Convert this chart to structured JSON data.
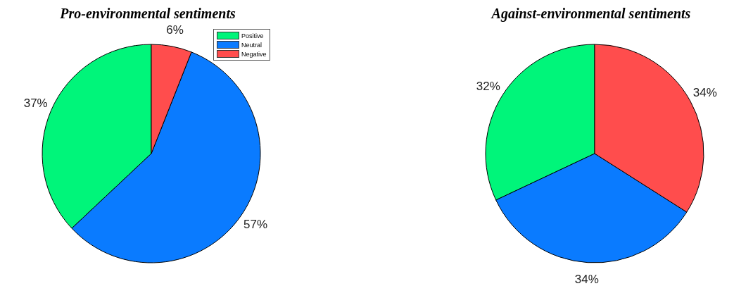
{
  "chart_data": [
    {
      "type": "pie",
      "title": "Pro-environmental sentiments",
      "categories": [
        "Positive",
        "Neutral",
        "Negative"
      ],
      "values": [
        37,
        57,
        6
      ],
      "value_labels": [
        "37%",
        "57%",
        "6%"
      ],
      "colors": [
        "#00f57a",
        "#0a7bff",
        "#ff4d4d"
      ],
      "legend": "top right"
    },
    {
      "type": "pie",
      "title": "Against-environmental sentiments",
      "categories": [
        null,
        null,
        null
      ],
      "values": [
        32,
        34,
        34
      ],
      "value_labels": [
        "32%",
        "34%",
        "34%"
      ],
      "colors": [
        "#00f57a",
        "#0a7bff",
        "#ff4d4d"
      ]
    }
  ]
}
